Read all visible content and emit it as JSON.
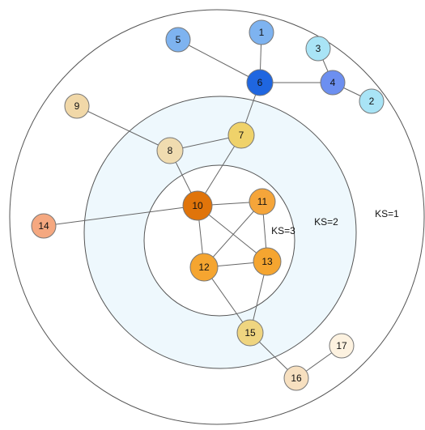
{
  "shells": [
    {
      "label": "KS=1",
      "fill": "#ffffff",
      "stroke": "#555555"
    },
    {
      "label": "KS=2",
      "fill": "#eef8fd",
      "stroke": "#555555"
    },
    {
      "label": "KS=3",
      "fill": "#ffffff",
      "stroke": "#555555"
    }
  ],
  "nodes": [
    {
      "id": "1",
      "label": "1",
      "color": "#7eb3f0",
      "shell": "KS=1"
    },
    {
      "id": "2",
      "label": "2",
      "color": "#a9e4f6",
      "shell": "KS=1"
    },
    {
      "id": "3",
      "label": "3",
      "color": "#a9e4f6",
      "shell": "KS=1"
    },
    {
      "id": "4",
      "label": "4",
      "color": "#6c8ff0",
      "shell": "KS=1"
    },
    {
      "id": "5",
      "label": "5",
      "color": "#7eb3f0",
      "shell": "KS=1"
    },
    {
      "id": "6",
      "label": "6",
      "color": "#1f66e0",
      "shell": "KS=1"
    },
    {
      "id": "7",
      "label": "7",
      "color": "#efd26a",
      "shell": "KS=2"
    },
    {
      "id": "8",
      "label": "8",
      "color": "#f0dcb0",
      "shell": "KS=2"
    },
    {
      "id": "9",
      "label": "9",
      "color": "#f1d8a8",
      "shell": "KS=1"
    },
    {
      "id": "10",
      "label": "10",
      "color": "#e0740a",
      "shell": "KS=3"
    },
    {
      "id": "11",
      "label": "11",
      "color": "#f5a53a",
      "shell": "KS=3"
    },
    {
      "id": "12",
      "label": "12",
      "color": "#f5a530",
      "shell": "KS=3"
    },
    {
      "id": "13",
      "label": "13",
      "color": "#f5a530",
      "shell": "KS=3"
    },
    {
      "id": "14",
      "label": "14",
      "color": "#f5a880",
      "shell": "KS=1"
    },
    {
      "id": "15",
      "label": "15",
      "color": "#efd580",
      "shell": "KS=2"
    },
    {
      "id": "16",
      "label": "16",
      "color": "#f7e0c0",
      "shell": "KS=1"
    },
    {
      "id": "17",
      "label": "17",
      "color": "#fdf2e0",
      "shell": "KS=1"
    }
  ],
  "edges": [
    [
      "5",
      "6"
    ],
    [
      "1",
      "6"
    ],
    [
      "6",
      "4"
    ],
    [
      "3",
      "4"
    ],
    [
      "4",
      "2"
    ],
    [
      "6",
      "7"
    ],
    [
      "9",
      "8"
    ],
    [
      "8",
      "7"
    ],
    [
      "8",
      "10"
    ],
    [
      "7",
      "10"
    ],
    [
      "14",
      "10"
    ],
    [
      "10",
      "11"
    ],
    [
      "10",
      "12"
    ],
    [
      "10",
      "13"
    ],
    [
      "11",
      "12"
    ],
    [
      "11",
      "13"
    ],
    [
      "12",
      "13"
    ],
    [
      "12",
      "15"
    ],
    [
      "13",
      "15"
    ],
    [
      "15",
      "16"
    ],
    [
      "16",
      "17"
    ]
  ]
}
